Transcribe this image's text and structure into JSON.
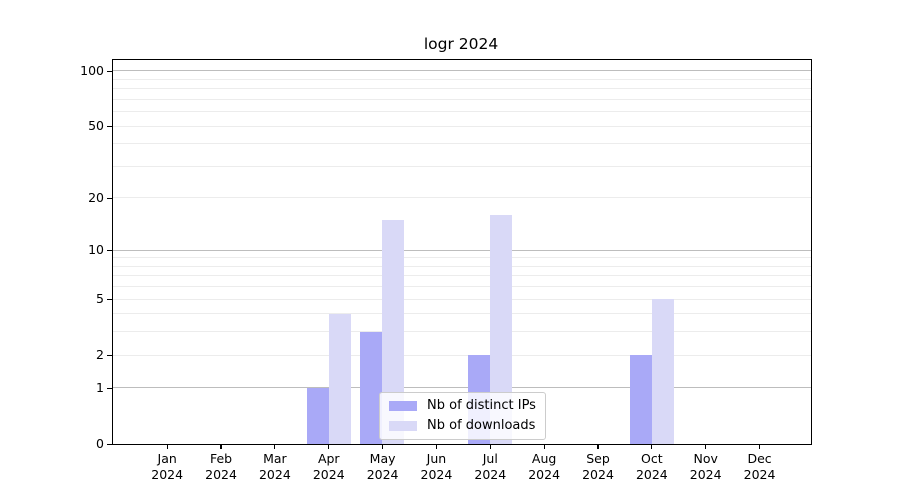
{
  "chart_data": {
    "type": "bar",
    "title": "logr 2024",
    "categories": [
      "Jan",
      "Feb",
      "Mar",
      "Apr",
      "May",
      "Jun",
      "Jul",
      "Aug",
      "Sep",
      "Oct",
      "Nov",
      "Dec"
    ],
    "category_year": "2024",
    "series": [
      {
        "name": "Nb of distinct IPs",
        "color": "#a9a9f7",
        "values": [
          0,
          0,
          0,
          1,
          3,
          0,
          2,
          0,
          0,
          2,
          0,
          0
        ]
      },
      {
        "name": "Nb of downloads",
        "color": "#d9d9f7",
        "values": [
          0,
          0,
          0,
          4,
          15,
          0,
          16,
          0,
          0,
          5,
          0,
          0
        ]
      }
    ],
    "yscale": "log1p",
    "y_ticks": [
      0,
      1,
      2,
      5,
      10,
      20,
      50,
      100
    ],
    "ylim": [
      0,
      114.7
    ],
    "grid": {
      "major_lines": [
        1,
        10,
        100
      ],
      "minor_lines": [
        2,
        3,
        4,
        5,
        6,
        7,
        8,
        9,
        20,
        30,
        40,
        50,
        60,
        70,
        80,
        90
      ],
      "major_color": "#bdbdbd",
      "minor_color": "#ececec"
    },
    "legend_position": "lower center",
    "xlabel": "",
    "ylabel": ""
  },
  "colors": {
    "background": "#ffffff",
    "spine": "#000000"
  }
}
